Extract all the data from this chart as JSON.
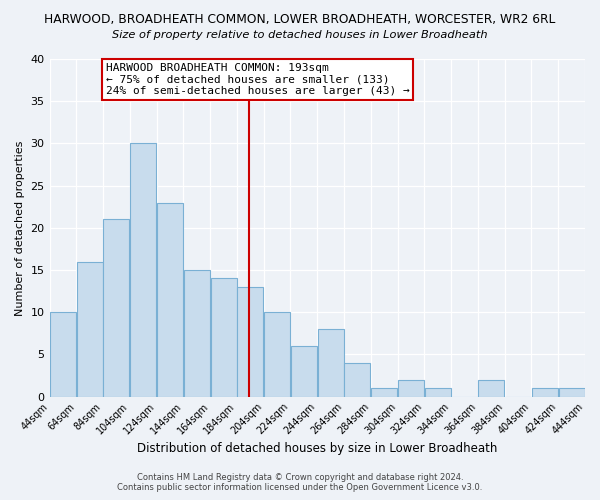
{
  "title": "HARWOOD, BROADHEATH COMMON, LOWER BROADHEATH, WORCESTER, WR2 6RL",
  "subtitle": "Size of property relative to detached houses in Lower Broadheath",
  "xlabel": "Distribution of detached houses by size in Lower Broadheath",
  "ylabel": "Number of detached properties",
  "bin_edges": [
    44,
    64,
    84,
    104,
    124,
    144,
    164,
    184,
    204,
    224,
    244,
    264,
    284,
    304,
    324,
    344,
    364,
    384,
    404,
    424,
    444
  ],
  "counts": [
    10,
    16,
    21,
    30,
    23,
    15,
    14,
    13,
    10,
    6,
    8,
    4,
    1,
    2,
    1,
    0,
    2,
    0,
    1,
    1
  ],
  "bar_color": "#c8dced",
  "bar_edge_color": "#7ab0d4",
  "property_line_x": 193,
  "property_line_color": "#cc0000",
  "annotation_line1": "HARWOOD BROADHEATH COMMON: 193sqm",
  "annotation_line2": "← 75% of detached houses are smaller (133)",
  "annotation_line3": "24% of semi-detached houses are larger (43) →",
  "annotation_box_color": "#ffffff",
  "annotation_box_edge_color": "#cc0000",
  "ylim": [
    0,
    40
  ],
  "background_color": "#eef2f7",
  "grid_color": "#ffffff",
  "footer_line1": "Contains HM Land Registry data © Crown copyright and database right 2024.",
  "footer_line2": "Contains public sector information licensed under the Open Government Licence v3.0."
}
